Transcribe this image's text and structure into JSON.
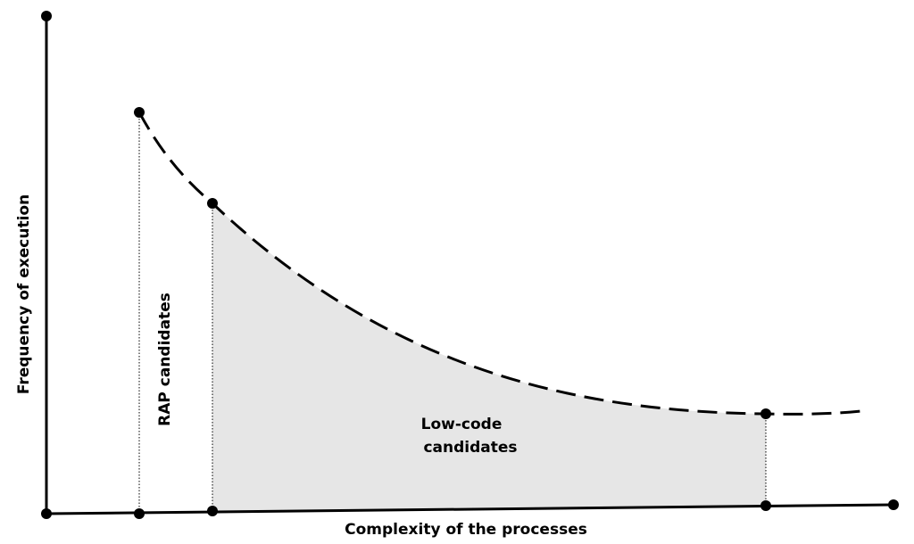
{
  "x_axis_label": "Complexity of the processes",
  "y_axis_label": "Frequency of execution",
  "regions": {
    "rap_label": "RAP candidates",
    "lowcode_label_line1": "Low-code",
    "lowcode_label_line2": "candidates"
  },
  "colors": {
    "line": "#000000",
    "region_fill": "#e6e6e6"
  }
}
